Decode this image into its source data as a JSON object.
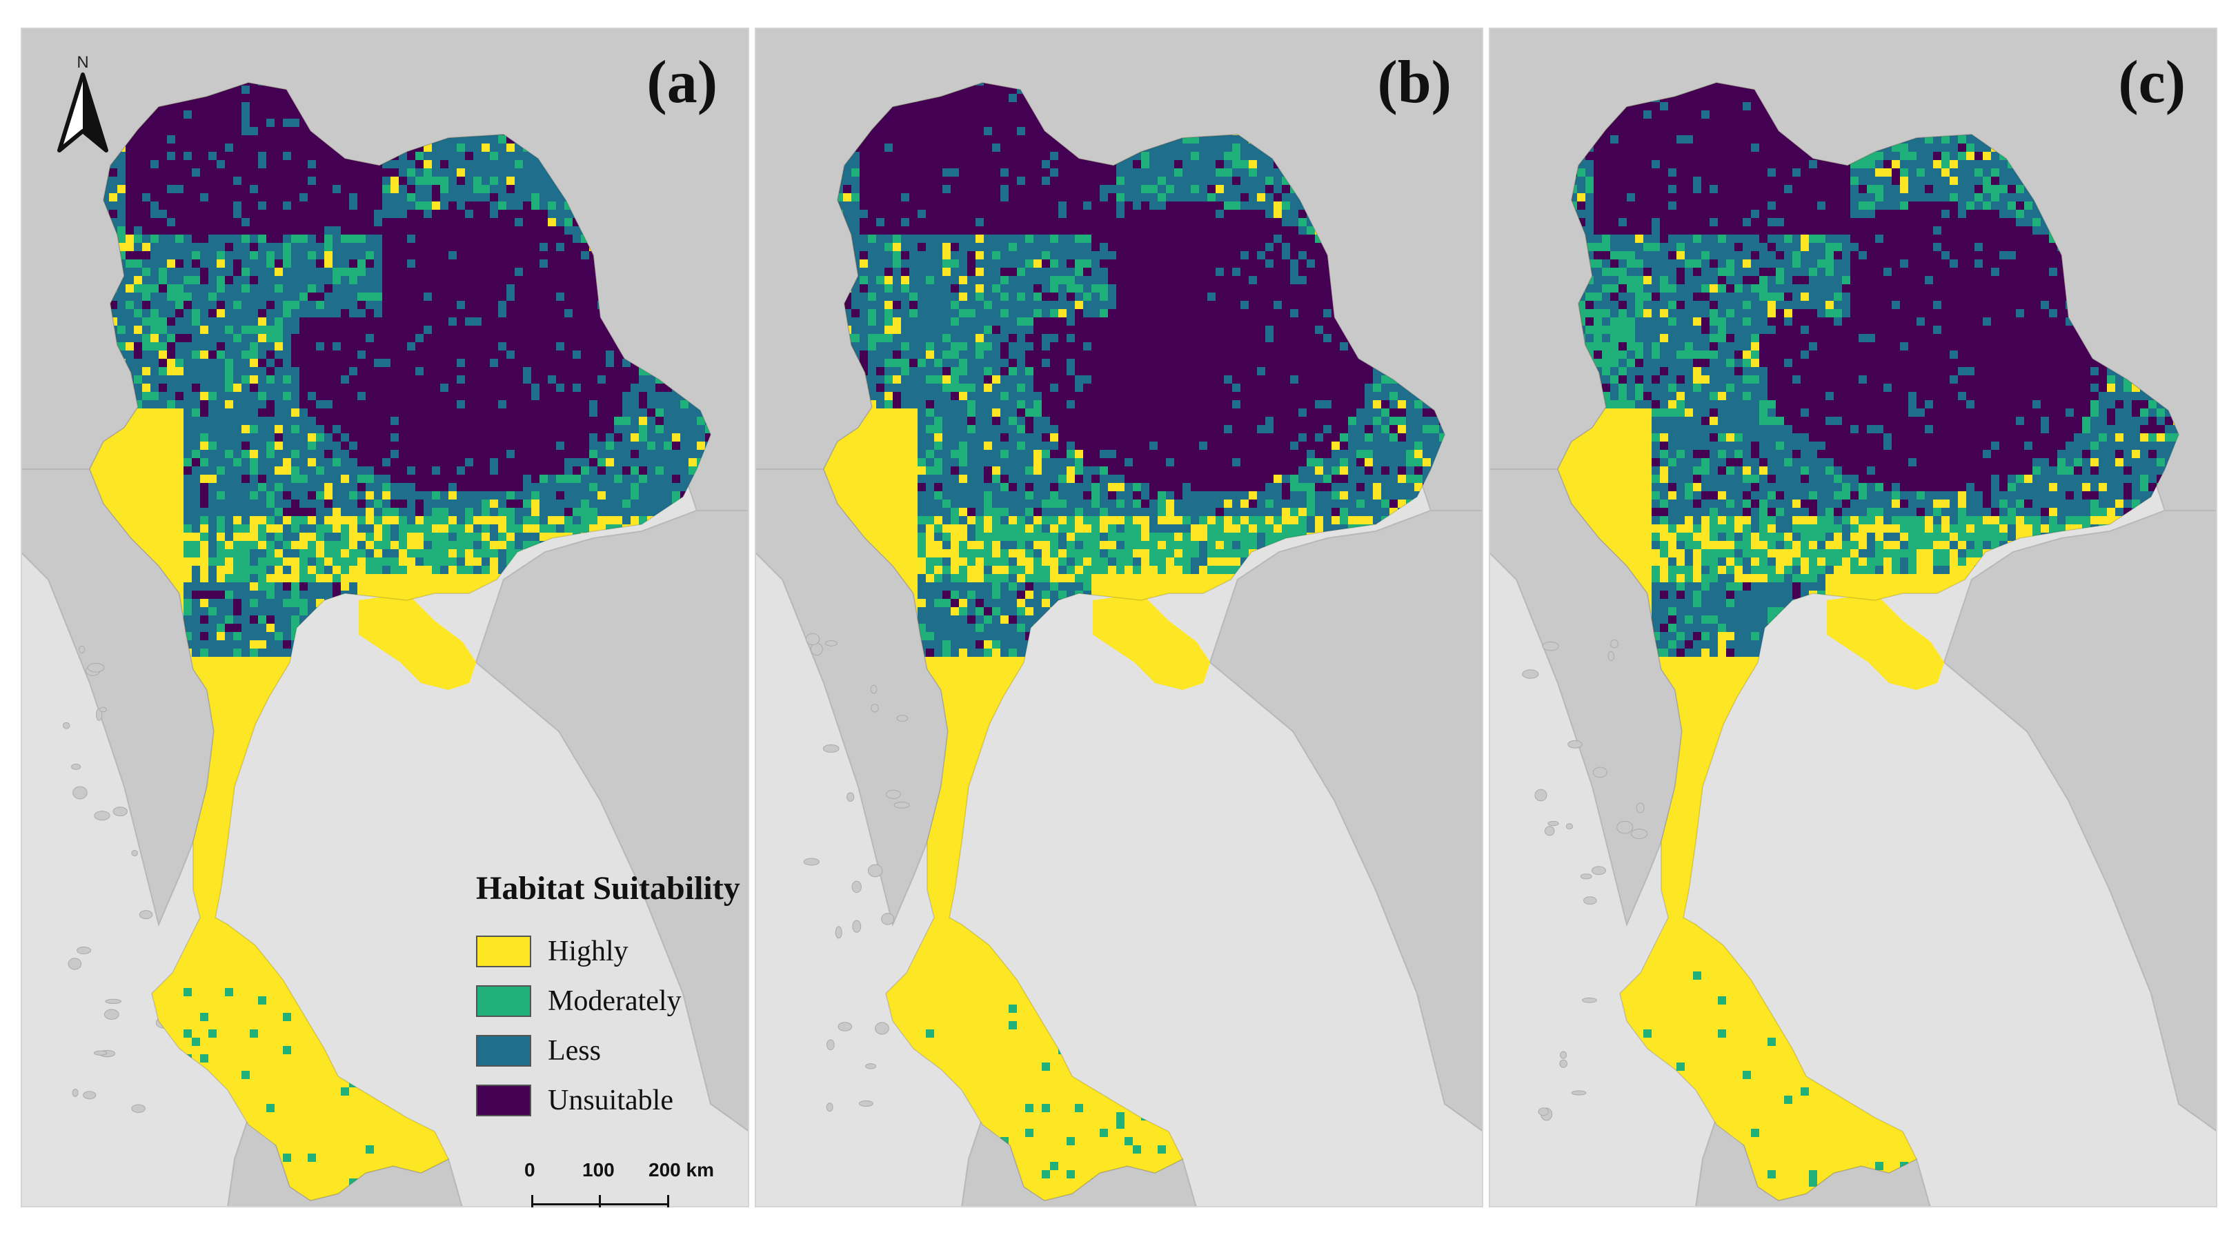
{
  "figure": {
    "panels": [
      {
        "label": "(a)"
      },
      {
        "label": "(b)"
      },
      {
        "label": "(c)"
      }
    ],
    "north_arrow": {
      "letter": "N",
      "icon": "north-arrow-icon"
    },
    "legend": {
      "title": "Habitat Suitability",
      "items": [
        {
          "label": "Highly",
          "color": "#fde725"
        },
        {
          "label": "Moderately",
          "color": "#20b07a"
        },
        {
          "label": "Less",
          "color": "#1f6e8c"
        },
        {
          "label": "Unsuitable",
          "color": "#440154"
        }
      ]
    },
    "scale_bar": {
      "ticks": [
        "0",
        "100",
        "200 km"
      ]
    },
    "colors": {
      "sea": "#e2e2e2",
      "neighbor_land": "#c9c9c9",
      "panel_border": "#d4d4d4"
    }
  }
}
